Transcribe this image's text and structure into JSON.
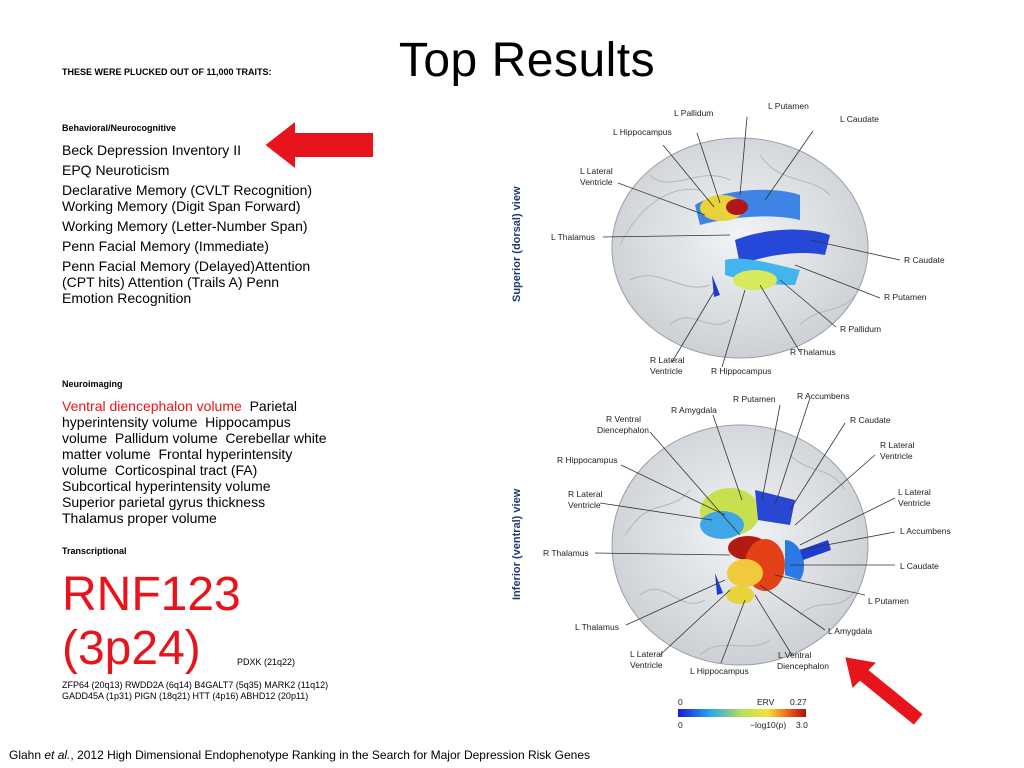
{
  "title": "Top Results",
  "intro": "THESE WERE PLUCKED OUT OF 11,000 TRAITS:",
  "behavioral": {
    "heading": "Behavioral/Neurocognitive",
    "items": [
      "Beck Depression Inventory II",
      "EPQ Neuroticism",
      "Declarative Memory (CVLT Recognition) Working Memory (Digit Span Forward)",
      "Working Memory (Letter-Number Span)",
      "Penn Facial Memory (Immediate)",
      "Penn Facial Memory (Delayed)Attention (CPT hits) Attention (Trails A) Penn Emotion Recognition"
    ]
  },
  "neuroimaging": {
    "heading": "Neuroimaging",
    "highlight": "Ventral diencephalon volume",
    "rest": "  Parietal hyperintensity volume  Hippocampus volume  Pallidum volume  Cerebellar white matter volume  Frontal hyperintensity volume  Corticospinal tract (FA) Subcortical hyperintensity volume  Superior parietal gyrus thickness  Thalamus proper volume"
  },
  "transcriptional": {
    "heading": "Transcriptional",
    "main_line1": "RNF123",
    "main_line2": "(3p24)",
    "secondary": "PDXK (21q22)",
    "others": "ZFP64 (20q13)  RWDD2A (6q14)  B4GALT7 (5q35)  MARK2 (11q12)  GADD45A (1p31)  PIGN (18q21)  HTT (4p16) ABHD12 (20p11)"
  },
  "citation": {
    "author": "Glahn ",
    "etal": "et al.",
    "text": ", 2012 High Dimensional Endophenotype Ranking in the Search for Major Depression Risk Genes"
  },
  "figure": {
    "top_view_label": "Superior (dorsal) view",
    "bottom_view_label": "Inferior (ventral) view",
    "top_labels": {
      "l_pallidum": "L Pallidum",
      "l_putamen": "L Putamen",
      "l_hippocampus": "L Hippocampus",
      "l_caudate": "L Caudate",
      "l_lateral_1": "L Lateral",
      "l_lateral_2": "Ventricle",
      "l_thalamus": "L Thalamus",
      "r_caudate": "R Caudate",
      "r_putamen": "R Putamen",
      "r_pallidum": "R Pallidum",
      "r_thalamus": "R Thalamus",
      "r_lateral_1": "R Lateral",
      "r_lateral_2": "Ventricle",
      "r_hippocampus": "R Hippocampus"
    },
    "bottom_labels": {
      "r_putamen": "R Putamen",
      "r_accumbens": "R Accumbens",
      "r_amygdala": "R Amygdala",
      "r_ventral_1": "R Ventral",
      "r_ventral_2": "Diencephalon",
      "r_caudate": "R Caudate",
      "r_lateral_a1": "R Lateral",
      "r_lateral_a2": "Ventricle",
      "r_hippocampus": "R Hippocampus",
      "r_lateral_b1": "R Lateral",
      "r_lateral_b2": "Ventricle",
      "l_lateral_1": "L Lateral",
      "l_lateral_2": "Ventricle",
      "l_accumbens": "L Accumbens",
      "r_thalamus": "R Thalamus",
      "l_caudate": "L Caudate",
      "l_putamen": "L Putamen",
      "l_amygdala": "L Amygdala",
      "l_thalamus": "L Thalamus",
      "l_lateral_b1": "L Lateral",
      "l_lateral_b2": "Ventricle",
      "l_hippocampus": "L Hippocampus",
      "l_ventral_1": "L Ventral",
      "l_ventral_2": "Diencephalon"
    },
    "scale": {
      "min": "0",
      "label": "ERV",
      "max": "0.27",
      "min2": "0",
      "label2": "−log10(p)",
      "max2": "3.0"
    }
  },
  "colors": {
    "arrow": "#e8141b",
    "highlight_text": "#e8141b"
  }
}
